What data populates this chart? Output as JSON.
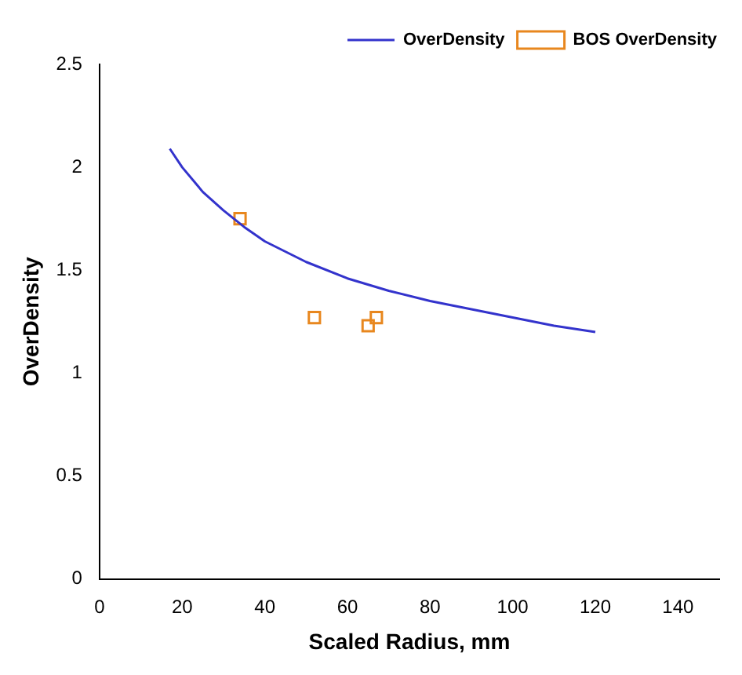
{
  "chart_data": {
    "type": "line",
    "xlabel": "Scaled Radius, mm",
    "ylabel": "OverDensity",
    "xlim": [
      0,
      150
    ],
    "xticks": [
      0,
      20,
      40,
      60,
      80,
      100,
      120,
      140
    ],
    "ylim": [
      0,
      2.5
    ],
    "yticks": [
      0,
      0.5,
      1,
      1.5,
      2,
      2.5
    ],
    "legend": "top right",
    "grid": false,
    "series": [
      {
        "name": "OverDensity",
        "type": "line",
        "color": "#3333cc",
        "marker": "none",
        "line_style": "solid",
        "x": [
          17,
          20,
          25,
          30,
          35,
          40,
          50,
          60,
          70,
          80,
          90,
          100,
          110,
          120
        ],
        "values": [
          2.09,
          2.0,
          1.88,
          1.79,
          1.71,
          1.64,
          1.54,
          1.46,
          1.4,
          1.35,
          1.31,
          1.27,
          1.23,
          1.2
        ]
      },
      {
        "name": "BOS OverDensity",
        "type": "scatter",
        "color": "#e8871e",
        "marker": "square",
        "x": [
          34,
          52,
          65,
          67
        ],
        "values": [
          1.75,
          1.27,
          1.23,
          1.27
        ]
      }
    ]
  }
}
